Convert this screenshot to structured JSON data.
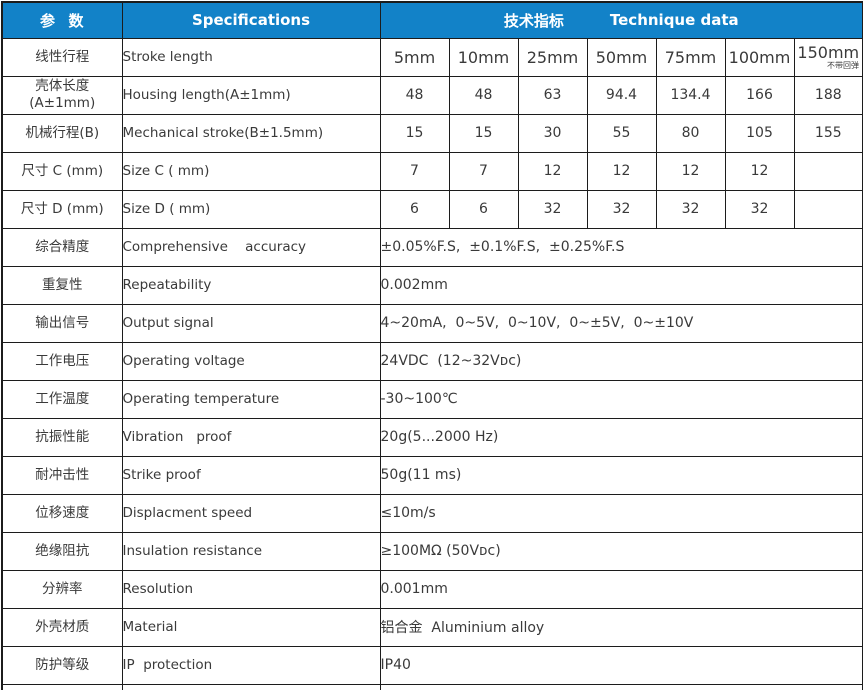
{
  "table": {
    "header": {
      "param_label": "参  数",
      "spec_label": "Specifications",
      "tech_label_zh": "技术指标",
      "tech_label_en": "Technique data"
    },
    "rows": [
      {
        "param": "线性行程",
        "spec": "Stroke length",
        "large": true,
        "cells": [
          "5mm",
          "10mm",
          "25mm",
          "50mm",
          "75mm",
          "100mm",
          "150mm"
        ],
        "last_note": "不带回弹"
      },
      {
        "param": "壳体长度\n(A±1mm)",
        "spec": "Housing length(A±1mm)",
        "cells": [
          "48",
          "48",
          "63",
          "94.4",
          "134.4",
          "166",
          "188"
        ]
      },
      {
        "param": "机械行程(B)",
        "spec": "Mechanical stroke(B±1.5mm)",
        "cells": [
          "15",
          "15",
          "30",
          "55",
          "80",
          "105",
          "155"
        ]
      },
      {
        "param": "尺寸 C (mm)",
        "spec": "Size C ( mm)",
        "cells": [
          "7",
          "7",
          "12",
          "12",
          "12",
          "12",
          ""
        ]
      },
      {
        "param": "尺寸 D (mm)",
        "spec": "Size D ( mm)",
        "cells": [
          "6",
          "6",
          "32",
          "32",
          "32",
          "32",
          ""
        ]
      },
      {
        "param": "综合精度",
        "spec": "Comprehensive    accuracy",
        "value": "±0.05%F.S,  ±0.1%F.S,  ±0.25%F.S"
      },
      {
        "param": "重复性",
        "spec": "Repeatability",
        "value": "0.002mm"
      },
      {
        "param": "输出信号",
        "spec": "Output signal",
        "value": "4~20mA,  0~5V,  0~10V,  0~±5V,  0~±10V"
      },
      {
        "param": "工作电压",
        "spec": "Operating voltage",
        "value": "24VDC  (12~32Vᴅᴄ)"
      },
      {
        "param": "工作温度",
        "spec": "Operating temperature",
        "value": "-30~100℃"
      },
      {
        "param": "抗振性能",
        "spec": "Vibration   proof",
        "value": "20g(5...2000 Hz)"
      },
      {
        "param": "耐冲击性",
        "spec": "Strike proof",
        "value": "50g(11 ms)"
      },
      {
        "param": "位移速度",
        "spec": "Displacment speed",
        "value": "≤10m/s"
      },
      {
        "param": "绝缘阻抗",
        "spec": "Insulation resistance",
        "value": "≥100MΩ (50Vᴅᴄ)"
      },
      {
        "param": "分辨率",
        "spec": "Resolution",
        "value": "0.001mm"
      },
      {
        "param": "外壳材质",
        "spec": "Material",
        "value": "铝合金  Aluminium alloy"
      },
      {
        "param": "防护等级",
        "spec": "IP  protection",
        "value": "IP40"
      }
    ]
  }
}
